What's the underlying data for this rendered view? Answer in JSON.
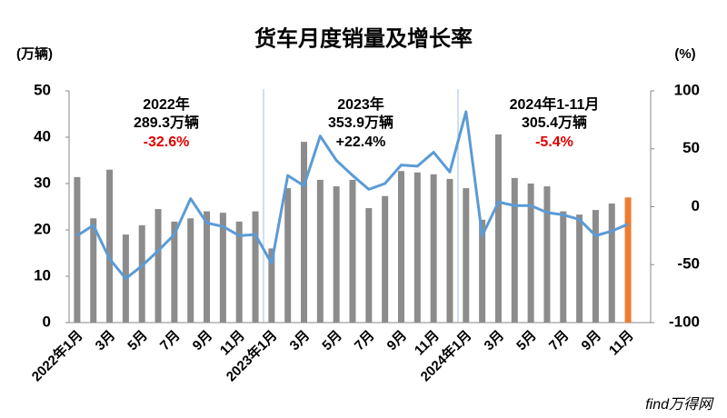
{
  "chart_data": {
    "type": "bar_line",
    "title": "货车月度销量及增长率",
    "y_label": "(万辆)",
    "y2_label": "(%)",
    "categories": [
      "2022年1月",
      null,
      "3月",
      null,
      "5月",
      null,
      "7月",
      null,
      "9月",
      null,
      "11月",
      null,
      "2023年1月",
      null,
      "3月",
      null,
      "5月",
      null,
      "7月",
      null,
      "9月",
      null,
      "11月",
      null,
      "2024年1月",
      null,
      "3月",
      null,
      "5月",
      null,
      "7月",
      null,
      "9月",
      null,
      "11月"
    ],
    "series": [
      {
        "name": "销量",
        "color": "#8c8c8c",
        "colors": [
          "#8c8c8c",
          "#8c8c8c",
          "#8c8c8c",
          "#8c8c8c",
          "#8c8c8c",
          "#8c8c8c",
          "#8c8c8c",
          "#8c8c8c",
          "#8c8c8c",
          "#8c8c8c",
          "#8c8c8c",
          "#8c8c8c",
          "#8c8c8c",
          "#8c8c8c",
          "#8c8c8c",
          "#8c8c8c",
          "#8c8c8c",
          "#8c8c8c",
          "#8c8c8c",
          "#8c8c8c",
          "#8c8c8c",
          "#8c8c8c",
          "#8c8c8c",
          "#8c8c8c",
          "#8c8c8c",
          "#8c8c8c",
          "#8c8c8c",
          "#8c8c8c",
          "#8c8c8c",
          "#8c8c8c",
          "#8c8c8c",
          "#8c8c8c",
          "#8c8c8c",
          "#8c8c8c",
          "#ed7d31"
        ],
        "values": [
          31.4,
          22.5,
          33,
          19,
          21,
          24.5,
          21.8,
          22.5,
          24,
          23.7,
          21.8,
          24,
          16,
          29,
          39,
          30.8,
          29.4,
          30.8,
          24.7,
          27.3,
          32.7,
          32.4,
          32,
          31,
          29,
          22.2,
          40.6,
          31.2,
          30,
          29.4,
          24,
          23.3,
          24.3,
          25.7,
          27
        ]
      },
      {
        "name": "增长率",
        "color": "#5b9bd5",
        "axis": "y2",
        "values": [
          -25,
          -16,
          -45,
          -62,
          -51,
          -38,
          -24,
          7,
          -14,
          -17,
          -25,
          -24,
          -49,
          27,
          18,
          61,
          40,
          27,
          15,
          20,
          36,
          35,
          47,
          30,
          82,
          -25,
          4,
          1,
          1,
          -5,
          -7,
          -11,
          -25,
          -21,
          -15
        ]
      }
    ],
    "ylim": [
      0,
      50
    ],
    "yticks": [
      0,
      10,
      20,
      30,
      40,
      50
    ],
    "y2lim": [
      -100,
      100
    ],
    "y2ticks": [
      -100,
      -50,
      0,
      50,
      100
    ],
    "annotations": [
      {
        "year": "2022年",
        "total": "289.3万辆",
        "change": "-32.6%",
        "change_color": "#e00000"
      },
      {
        "year": "2023年",
        "total": "353.9万辆",
        "change": "+22.4%",
        "change_color": "#000000"
      },
      {
        "year": "2024年1-11月",
        "total": "305.4万辆",
        "change": "-5.4%",
        "change_color": "#e00000"
      }
    ],
    "logo": "find万得网"
  }
}
